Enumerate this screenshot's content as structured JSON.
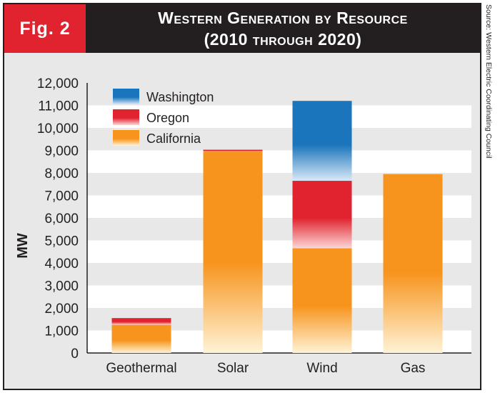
{
  "figure": {
    "label": "Fig. 2"
  },
  "source": "Source: Western Electric Coordinating Council",
  "colors": {
    "washington": "#1b75bc",
    "oregon": "#e0232f",
    "california": "#f7941d",
    "band": "#ffffff",
    "bg": "#e8e8e8"
  },
  "chart_data": {
    "type": "bar",
    "stacked": true,
    "title_lines": [
      "Western Generation by Resource",
      "(2010 through 2020)"
    ],
    "xlabel": "",
    "ylabel": "MW",
    "ylim": [
      0,
      12000
    ],
    "yticks": [
      0,
      1000,
      2000,
      3000,
      4000,
      5000,
      6000,
      7000,
      8000,
      9000,
      10000,
      11000,
      12000
    ],
    "ytick_labels": [
      "0",
      "1,000",
      "2,000",
      "3,000",
      "4,000",
      "5,000",
      "6,000",
      "7,000",
      "8,000",
      "9,000",
      "10,000",
      "11,000",
      "12,000"
    ],
    "categories": [
      "Geothermal",
      "Solar",
      "Wind",
      "Gas"
    ],
    "series": [
      {
        "name": "California",
        "values": [
          1250,
          8950,
          4650,
          7950
        ]
      },
      {
        "name": "Oregon",
        "values": [
          300,
          80,
          3000,
          0
        ]
      },
      {
        "name": "Washington",
        "values": [
          0,
          0,
          3550,
          0
        ]
      }
    ],
    "legend": [
      "Washington",
      "Oregon",
      "California"
    ],
    "legend_position": "top-left"
  }
}
